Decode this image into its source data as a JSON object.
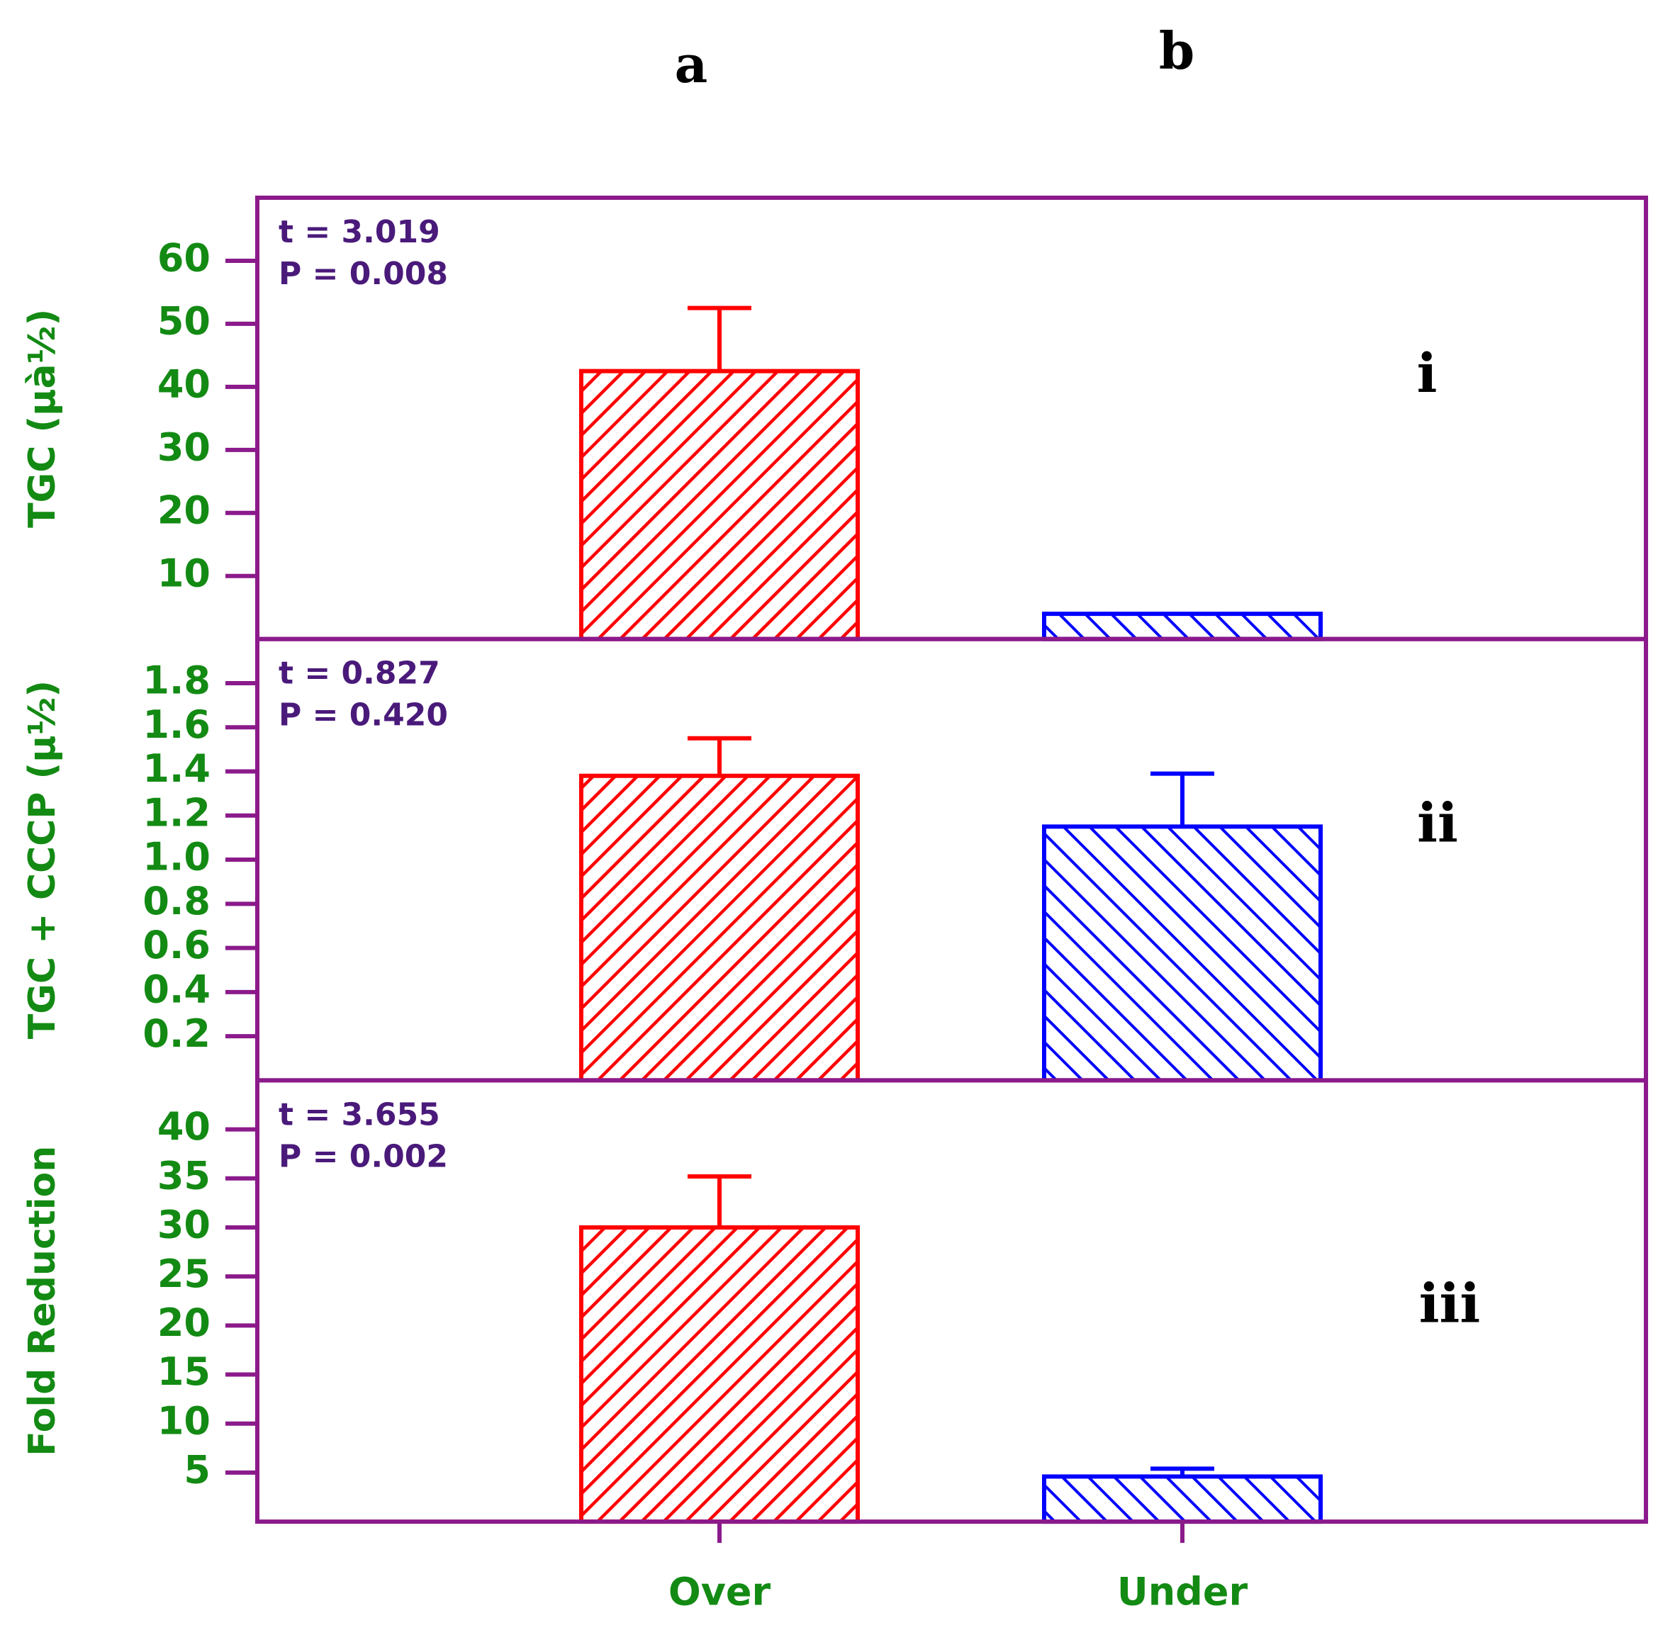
{
  "headers": [
    "a",
    "b"
  ],
  "chart_data": [
    {
      "type": "bar",
      "ylabel": "TGC (µà½)",
      "annotations": [
        "t = 3.019",
        "P = 0.008"
      ],
      "panel_label": "i",
      "values": [
        42.5,
        4
      ],
      "errors": [
        10,
        null
      ],
      "colors": [
        "#ff0000",
        "#0000ff"
      ],
      "ylim": [
        0,
        70
      ],
      "yticks": [
        10,
        20,
        30,
        40,
        50,
        60
      ]
    },
    {
      "type": "bar",
      "ylabel": "TGC + CCCP (µ½)",
      "annotations": [
        "t = 0.827",
        "P = 0.420"
      ],
      "panel_label": "ii",
      "values": [
        1.38,
        1.15
      ],
      "errors": [
        0.17,
        0.24
      ],
      "colors": [
        "#ff0000",
        "#0000ff"
      ],
      "ylim": [
        0,
        2
      ],
      "yticks": [
        {
          "value": 0.2,
          "label": "0.2"
        },
        {
          "value": 0.4,
          "label": "0.4"
        },
        {
          "value": 0.6,
          "label": "0.6"
        },
        {
          "value": 0.8,
          "label": "0.8"
        },
        {
          "value": 1.0,
          "label": "1.0"
        },
        {
          "value": 1.2,
          "label": "1.2"
        },
        {
          "value": 1.4,
          "label": "1.4"
        },
        {
          "value": 1.6,
          "label": "1.6"
        },
        {
          "value": 1.8,
          "label": "1.8"
        }
      ]
    },
    {
      "type": "bar",
      "ylabel": "Fold Reduction",
      "annotations": [
        "t = 3.655",
        "P = 0.002"
      ],
      "panel_label": "iii",
      "categories": [
        "Over",
        "Under"
      ],
      "values": [
        30,
        4.6
      ],
      "errors": [
        5.2,
        0.8
      ],
      "colors": [
        "#ff0000",
        "#0000ff"
      ],
      "ylim": [
        0,
        45
      ],
      "yticks": [
        5,
        10,
        15,
        20,
        25,
        30,
        35,
        40
      ]
    }
  ]
}
